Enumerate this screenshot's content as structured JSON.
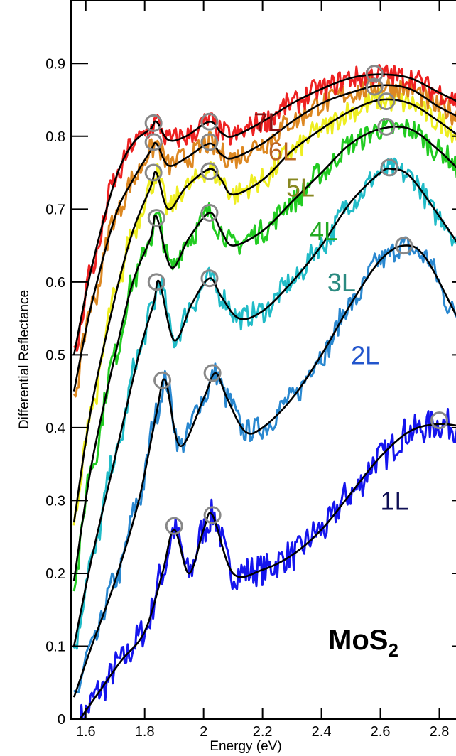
{
  "chart_data": {
    "type": "line",
    "title": "",
    "xlabel": "Energy (eV)",
    "ylabel": "Differential Reflectance",
    "xlim": [
      1.55,
      2.9
    ],
    "ylim": [
      0,
      0.95
    ],
    "x_ticks": [
      1.6,
      1.8,
      2.0,
      2.2,
      2.4,
      2.6,
      2.8
    ],
    "x_tick_labels": [
      "1.6",
      "1.8",
      "2",
      "2.2",
      "2.4",
      "2.6",
      "2.8"
    ],
    "y_ticks": [
      0,
      0.1,
      0.2,
      0.3,
      0.4,
      0.5,
      0.6,
      0.7,
      0.8,
      0.9
    ],
    "y_tick_labels": [
      "0",
      "0.1",
      "0.2",
      "0.3",
      "0.4",
      "0.5",
      "0.6",
      "0.7",
      "0.8",
      "0.9"
    ],
    "annotation": {
      "base": "MoS",
      "sub": "2"
    },
    "fit_color": "#000000",
    "marker_color": "#888888",
    "series": [
      {
        "name": "1L",
        "color": "#1515ee",
        "label_color": "#101055",
        "label_pos": [
          2.6,
          0.3
        ],
        "x": [
          1.58,
          1.65,
          1.72,
          1.8,
          1.86,
          1.9,
          1.95,
          2.0,
          2.03,
          2.1,
          2.2,
          2.3,
          2.4,
          2.5,
          2.6,
          2.7,
          2.8,
          2.9
        ],
        "y": [
          0.0,
          0.04,
          0.08,
          0.12,
          0.2,
          0.26,
          0.2,
          0.26,
          0.28,
          0.2,
          0.205,
          0.225,
          0.26,
          0.31,
          0.36,
          0.395,
          0.405,
          0.4
        ],
        "markers": [
          [
            1.9,
            0.265
          ],
          [
            2.03,
            0.28
          ],
          [
            2.8,
            0.41
          ]
        ]
      },
      {
        "name": "2L",
        "color": "#2a88d0",
        "label_color": "#2255cc",
        "label_pos": [
          2.5,
          0.5
        ],
        "x": [
          1.56,
          1.62,
          1.7,
          1.78,
          1.84,
          1.87,
          1.92,
          2.0,
          2.04,
          2.08,
          2.14,
          2.2,
          2.3,
          2.4,
          2.5,
          2.6,
          2.68,
          2.75,
          2.85,
          2.9
        ],
        "y": [
          0.03,
          0.1,
          0.19,
          0.3,
          0.42,
          0.465,
          0.375,
          0.44,
          0.475,
          0.44,
          0.395,
          0.4,
          0.44,
          0.5,
          0.57,
          0.63,
          0.65,
          0.635,
          0.56,
          0.52
        ],
        "markers": [
          [
            1.86,
            0.465
          ],
          [
            2.03,
            0.475
          ],
          [
            2.68,
            0.65
          ]
        ]
      },
      {
        "name": "3L",
        "color": "#22bcc8",
        "label_color": "#2a8a80",
        "label_pos": [
          2.42,
          0.6
        ],
        "x": [
          1.56,
          1.62,
          1.7,
          1.78,
          1.83,
          1.85,
          1.9,
          1.96,
          2.02,
          2.06,
          2.12,
          2.2,
          2.3,
          2.4,
          2.5,
          2.6,
          2.64,
          2.7,
          2.8,
          2.9
        ],
        "y": [
          0.1,
          0.22,
          0.36,
          0.5,
          0.57,
          0.6,
          0.52,
          0.57,
          0.605,
          0.58,
          0.55,
          0.56,
          0.6,
          0.65,
          0.71,
          0.75,
          0.755,
          0.745,
          0.69,
          0.63
        ],
        "markers": [
          [
            1.84,
            0.6
          ],
          [
            2.02,
            0.605
          ],
          [
            2.63,
            0.757
          ]
        ]
      },
      {
        "name": "4L",
        "color": "#22cc22",
        "label_color": "#22aa22",
        "label_pos": [
          2.36,
          0.67
        ],
        "x": [
          1.56,
          1.62,
          1.7,
          1.76,
          1.82,
          1.84,
          1.89,
          1.95,
          2.02,
          2.06,
          2.1,
          2.2,
          2.3,
          2.4,
          2.5,
          2.6,
          2.7,
          2.8,
          2.9
        ],
        "y": [
          0.19,
          0.35,
          0.5,
          0.6,
          0.66,
          0.69,
          0.62,
          0.66,
          0.695,
          0.67,
          0.65,
          0.67,
          0.71,
          0.75,
          0.79,
          0.81,
          0.81,
          0.78,
          0.74
        ],
        "markers": [
          [
            1.84,
            0.688
          ],
          [
            2.02,
            0.695
          ],
          [
            2.62,
            0.813
          ]
        ]
      },
      {
        "name": "5L",
        "color": "#eeee22",
        "label_color": "#888822",
        "label_pos": [
          2.28,
          0.73
        ],
        "x": [
          1.56,
          1.62,
          1.7,
          1.76,
          1.82,
          1.84,
          1.88,
          1.94,
          2.02,
          2.06,
          2.1,
          2.2,
          2.3,
          2.4,
          2.5,
          2.6,
          2.7,
          2.8,
          2.9
        ],
        "y": [
          0.27,
          0.43,
          0.58,
          0.67,
          0.73,
          0.75,
          0.7,
          0.73,
          0.755,
          0.74,
          0.72,
          0.74,
          0.78,
          0.81,
          0.835,
          0.85,
          0.845,
          0.82,
          0.79
        ],
        "markers": [
          [
            1.83,
            0.75
          ],
          [
            2.02,
            0.752
          ],
          [
            2.62,
            0.848
          ]
        ]
      },
      {
        "name": "6L",
        "color": "#dd8822",
        "label_color": "#bb6622",
        "label_pos": [
          2.22,
          0.78
        ],
        "x": [
          1.56,
          1.62,
          1.7,
          1.76,
          1.82,
          1.84,
          1.88,
          1.94,
          2.02,
          2.06,
          2.1,
          2.2,
          2.3,
          2.4,
          2.5,
          2.6,
          2.7,
          2.8,
          2.9
        ],
        "y": [
          0.45,
          0.57,
          0.69,
          0.74,
          0.78,
          0.79,
          0.76,
          0.77,
          0.79,
          0.775,
          0.77,
          0.79,
          0.82,
          0.845,
          0.86,
          0.87,
          0.865,
          0.84,
          0.82
        ],
        "markers": [
          [
            1.83,
            0.792
          ],
          [
            2.02,
            0.792
          ],
          [
            2.58,
            0.868
          ]
        ]
      },
      {
        "name": "7L",
        "color": "#ee2222",
        "label_color": "#881111",
        "label_pos": [
          2.17,
          0.82
        ],
        "x": [
          1.56,
          1.62,
          1.7,
          1.76,
          1.82,
          1.84,
          1.88,
          1.94,
          2.02,
          2.06,
          2.1,
          2.2,
          2.3,
          2.4,
          2.5,
          2.6,
          2.7,
          2.8,
          2.9
        ],
        "y": [
          0.5,
          0.62,
          0.74,
          0.79,
          0.81,
          0.82,
          0.795,
          0.8,
          0.82,
          0.805,
          0.8,
          0.82,
          0.845,
          0.865,
          0.88,
          0.885,
          0.88,
          0.86,
          0.84
        ],
        "markers": [
          [
            1.83,
            0.818
          ],
          [
            2.02,
            0.82
          ],
          [
            2.58,
            0.886
          ]
        ]
      }
    ]
  }
}
